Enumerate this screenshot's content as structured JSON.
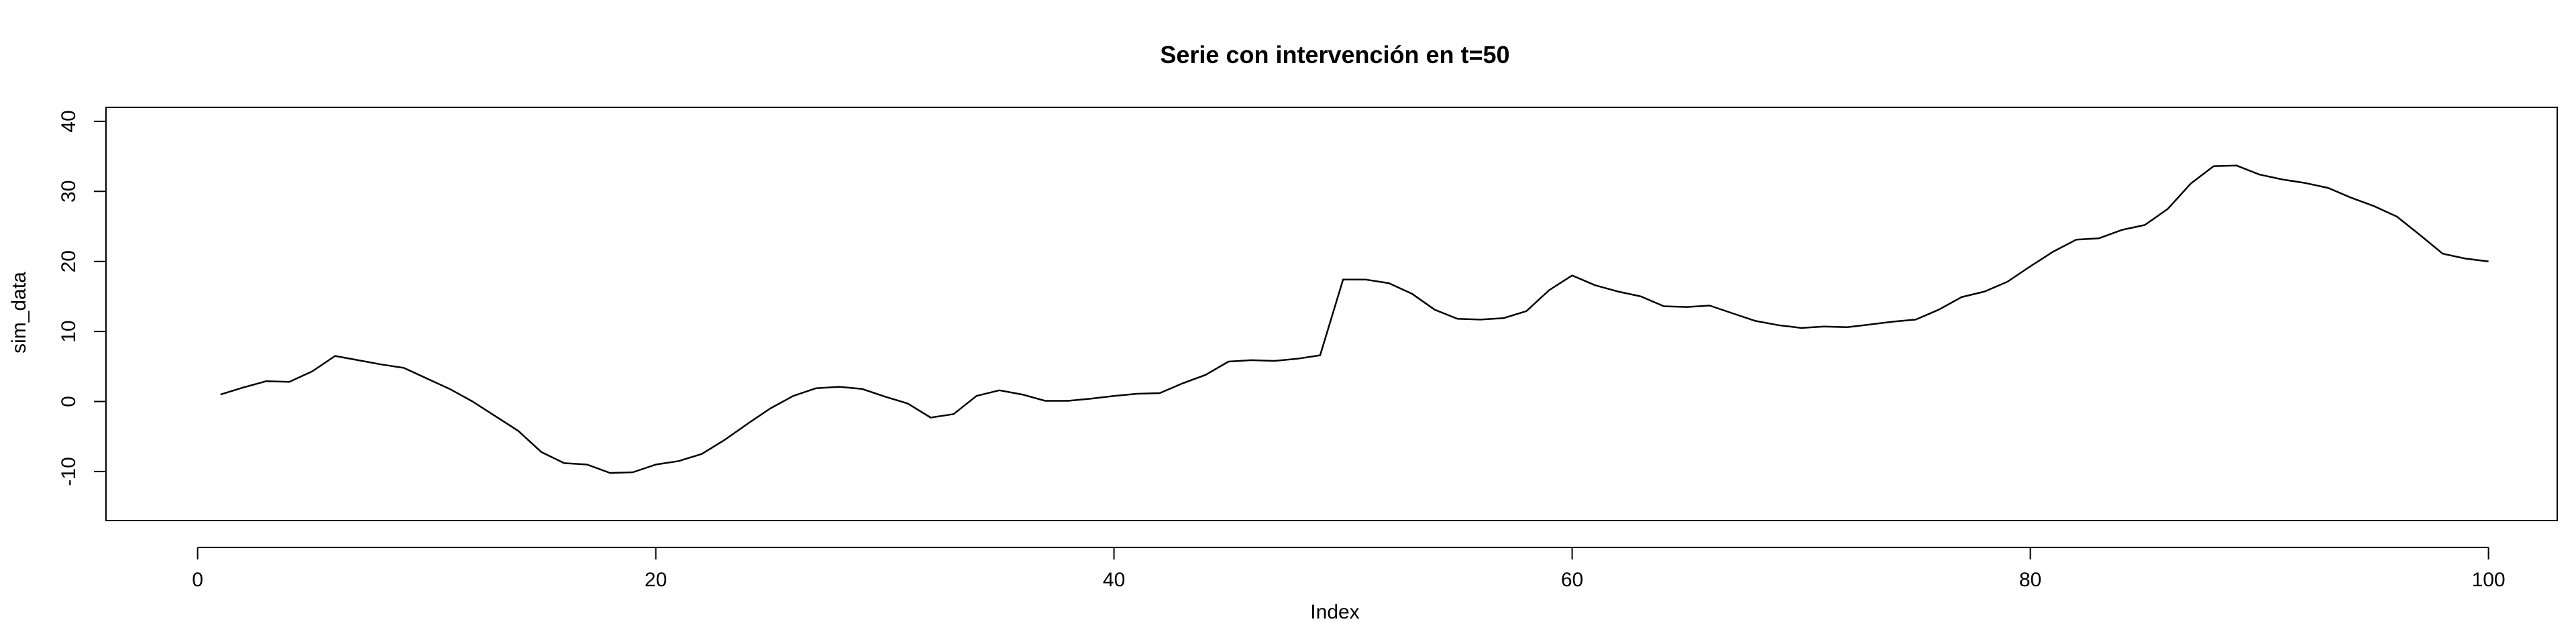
{
  "chart_data": {
    "type": "line",
    "title": "Serie con intervención en t=50",
    "xlabel": "Index",
    "ylabel": "sim_data",
    "xlim": [
      -4,
      103
    ],
    "ylim": [
      -17,
      42
    ],
    "x_ticks": [
      0,
      20,
      40,
      60,
      80,
      100
    ],
    "y_ticks": [
      -10,
      0,
      10,
      20,
      30,
      40
    ],
    "grid": false,
    "x": [
      1,
      2,
      3,
      4,
      5,
      6,
      7,
      8,
      9,
      10,
      11,
      12,
      13,
      14,
      15,
      16,
      17,
      18,
      19,
      20,
      21,
      22,
      23,
      24,
      25,
      26,
      27,
      28,
      29,
      30,
      31,
      32,
      33,
      34,
      35,
      36,
      37,
      38,
      39,
      40,
      41,
      42,
      43,
      44,
      45,
      46,
      47,
      48,
      49,
      50,
      51,
      52,
      53,
      54,
      55,
      56,
      57,
      58,
      59,
      60,
      61,
      62,
      63,
      64,
      65,
      66,
      67,
      68,
      69,
      70,
      71,
      72,
      73,
      74,
      75,
      76,
      77,
      78,
      79,
      80,
      81,
      82,
      83,
      84,
      85,
      86,
      87,
      88,
      89,
      90,
      91,
      92,
      93,
      94,
      95,
      96,
      97,
      98,
      99,
      100
    ],
    "values": [
      1.0,
      2.0,
      2.9,
      2.8,
      4.3,
      6.5,
      5.9,
      5.3,
      4.8,
      3.3,
      1.8,
      0.0,
      -2.1,
      -4.2,
      -7.2,
      -8.8,
      -9.0,
      -10.2,
      -10.1,
      -9.0,
      -8.5,
      -7.5,
      -5.5,
      -3.2,
      -1.0,
      0.8,
      1.9,
      2.1,
      1.8,
      0.7,
      -0.3,
      -2.3,
      -1.8,
      0.8,
      1.6,
      1.0,
      0.1,
      0.1,
      0.4,
      0.8,
      1.1,
      1.2,
      2.6,
      3.8,
      5.7,
      5.9,
      5.8,
      6.1,
      6.6,
      17.4,
      17.4,
      16.9,
      15.4,
      13.1,
      11.8,
      11.7,
      11.9,
      12.9,
      15.9,
      18.0,
      16.6,
      15.7,
      15.0,
      13.6,
      13.5,
      13.7,
      12.6,
      11.5,
      10.9,
      10.5,
      10.7,
      10.6,
      11.0,
      11.4,
      11.7,
      13.1,
      14.9,
      15.7,
      17.1,
      19.3,
      21.4,
      23.1,
      23.3,
      24.5,
      25.2,
      27.5,
      31.1,
      33.6,
      33.7,
      32.4,
      31.7,
      31.2,
      30.5,
      29.1,
      27.9,
      26.4,
      23.8,
      21.1,
      20.4,
      20.0
    ]
  }
}
